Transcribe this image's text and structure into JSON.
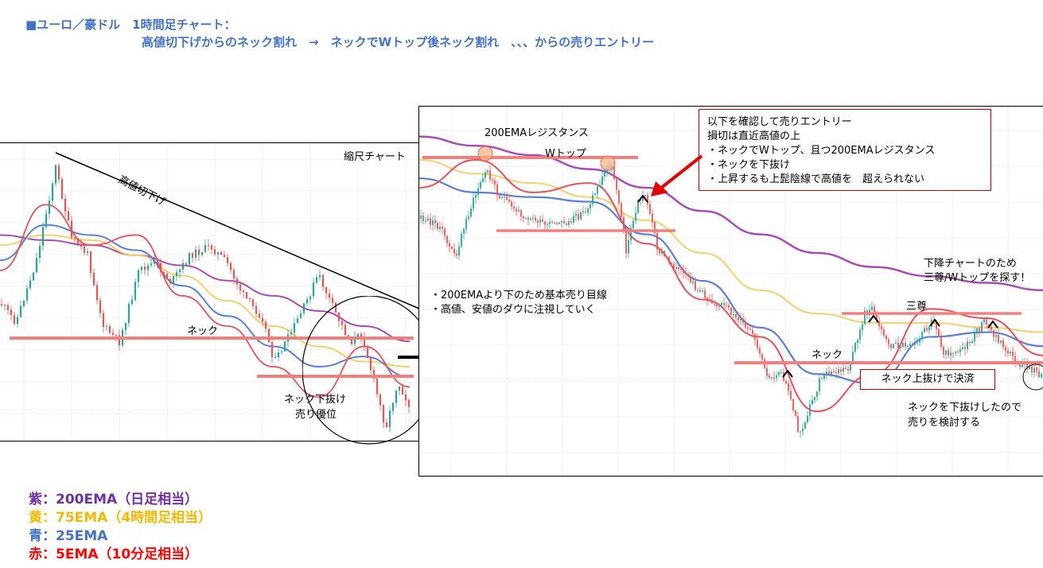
{
  "header": {
    "prefix": "■ユーロ／豪ドル　1時間足チャート：",
    "line2": "高値切下げからのネック割れ　→　ネックでWトップ後ネック割れ　、、、からの売りエントリー"
  },
  "left_chart": {
    "title": "縮尺チャート",
    "trendline_label": "高値切下げ",
    "neck_label": "ネック",
    "break_label_1": "ネック下抜け",
    "break_label_2": "売り優位"
  },
  "right_chart": {
    "ema_resistance_label": "200EMAレジスタンス",
    "w_top_label": "Wトップ",
    "entry_box": {
      "line1": "以下を確認して売りエントリー",
      "line2": "損切は直近高値の上",
      "line3": "・ネックでWトップ、且つ200EMAレジスタンス",
      "line4": "・ネックを下抜け",
      "line5": "・上昇するも上髭陰線で高値を　超えられない"
    },
    "note_line1": "・200EMAより下のため基本売り目線",
    "note_line2": "・高値、安値のダウに注視していく",
    "downtrend_line1": "下降チャートのため",
    "downtrend_line2": "三尊/Wトップを探す！",
    "triple_top_label": "三尊",
    "neck_label": "ネック",
    "settle_label": "ネック上抜けで決済",
    "consider_line1": "ネックを下抜けしたので",
    "consider_line2": "売りを検討する"
  },
  "legend": [
    {
      "label": "紫：200EMA（日足相当）",
      "color": "#7030a0"
    },
    {
      "label": "黄：75EMA（4時間足相当）",
      "color": "#f5b800"
    },
    {
      "label": "青：25EMA",
      "color": "#4472c4"
    },
    {
      "label": "赤：5EMA（10分足相当）",
      "color": "#ff0000"
    }
  ],
  "colors": {
    "ema200": "#a64cb4",
    "ema75": "#f8cf6a",
    "ema25": "#5b7fd6",
    "ema5": "#e8505b",
    "level_line": "#f08080",
    "bull_candle": "#26a69a",
    "bear_candle": "#ef5350"
  },
  "chart_data": [
    {
      "type": "line",
      "series": [
        {
          "name": "紫：200EMA（日足相当）",
          "values": [
            1.65,
            1.649,
            1.648,
            1.646,
            1.644,
            1.641,
            1.638,
            1.635,
            1.632,
            1.629
          ]
        },
        {
          "name": "黄：75EMA（4時間足相当）",
          "values": [
            1.648,
            1.65,
            1.649,
            1.646,
            1.642,
            1.637,
            1.632,
            1.628,
            1.625,
            1.624
          ]
        },
        {
          "name": "青：25EMA",
          "values": [
            1.645,
            1.652,
            1.65,
            1.647,
            1.64,
            1.634,
            1.628,
            1.624,
            1.626,
            1.622
          ]
        },
        {
          "name": "赤：5EMA（10分足相当）",
          "values": [
            1.643,
            1.656,
            1.648,
            1.65,
            1.638,
            1.632,
            1.624,
            1.618,
            1.628,
            1.62
          ]
        }
      ]
    },
    {
      "type": "line",
      "series": [
        {
          "name": "紫：200EMA（日足相当）",
          "values": [
            1.6585,
            1.6575,
            1.6565,
            1.655,
            1.653,
            1.6505,
            1.648,
            1.646,
            1.6445,
            1.6435,
            1.6428,
            1.642
          ]
        },
        {
          "name": "黄：75EMA（4時間足相当）",
          "values": [
            1.656,
            1.6545,
            1.6535,
            1.652,
            1.6495,
            1.646,
            1.642,
            1.6395,
            1.6385,
            1.6385,
            1.638,
            1.6375
          ]
        },
        {
          "name": "青：25EMA",
          "values": [
            1.654,
            1.6525,
            1.652,
            1.6515,
            1.648,
            1.643,
            1.638,
            1.633,
            1.632,
            1.637,
            1.6375,
            1.636
          ]
        },
        {
          "name": "赤：5EMA（10分足相当）",
          "values": [
            1.653,
            1.656,
            1.6525,
            1.6535,
            1.647,
            1.641,
            1.637,
            1.629,
            1.633,
            1.64,
            1.639,
            1.635
          ]
        }
      ]
    }
  ]
}
